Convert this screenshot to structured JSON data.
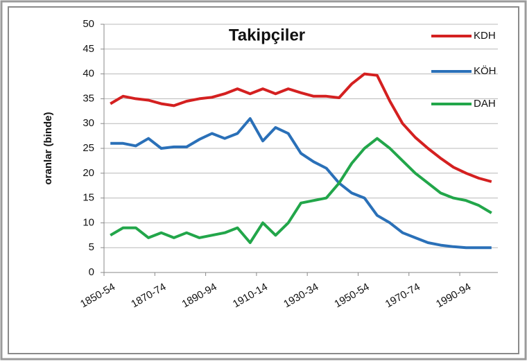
{
  "chart_data": {
    "type": "line",
    "title": "Takipçiler",
    "y_label": "oranlar (binde)",
    "categories": [
      "1850-54",
      null,
      null,
      null,
      "1870-74",
      null,
      null,
      null,
      "1890-94",
      null,
      null,
      null,
      "1910-14",
      null,
      null,
      null,
      "1930-34",
      null,
      null,
      null,
      "1950-54",
      null,
      null,
      null,
      "1970-74",
      null,
      null,
      null,
      "1990-94",
      null,
      null
    ],
    "series": [
      {
        "name": "KDH",
        "color": "#d42020",
        "values": [
          34,
          35.5,
          35,
          34.7,
          34,
          33.6,
          34.5,
          35,
          35.3,
          36,
          37,
          36,
          37,
          36,
          37,
          36.2,
          35.5,
          35.5,
          35.2,
          38,
          40,
          39.7,
          34.5,
          30,
          27.2,
          25,
          23,
          21.2,
          20,
          19,
          18.3
        ]
      },
      {
        "name": "KÖH",
        "color": "#2a70b8",
        "values": [
          26,
          26,
          25.5,
          27,
          25,
          25.3,
          25.3,
          26.8,
          28,
          27,
          28,
          31,
          26.5,
          29.2,
          28,
          24,
          22.3,
          21,
          18,
          16,
          15,
          11.5,
          10,
          8,
          7,
          6,
          5.5,
          5.2,
          5,
          5,
          5
        ]
      },
      {
        "name": "DAH",
        "color": "#22a64a",
        "values": [
          7.5,
          9,
          9,
          7,
          8,
          7,
          8,
          7,
          7.5,
          8,
          9,
          6,
          10,
          7.5,
          10,
          14,
          14.5,
          15,
          18,
          22,
          25,
          27,
          25,
          22.5,
          20,
          18,
          16,
          15,
          14.5,
          13.5,
          12
        ]
      }
    ],
    "ylim": [
      0,
      50
    ],
    "yticks": [
      0,
      5,
      10,
      15,
      20,
      25,
      30,
      35,
      40,
      45,
      50
    ],
    "grid": true
  }
}
